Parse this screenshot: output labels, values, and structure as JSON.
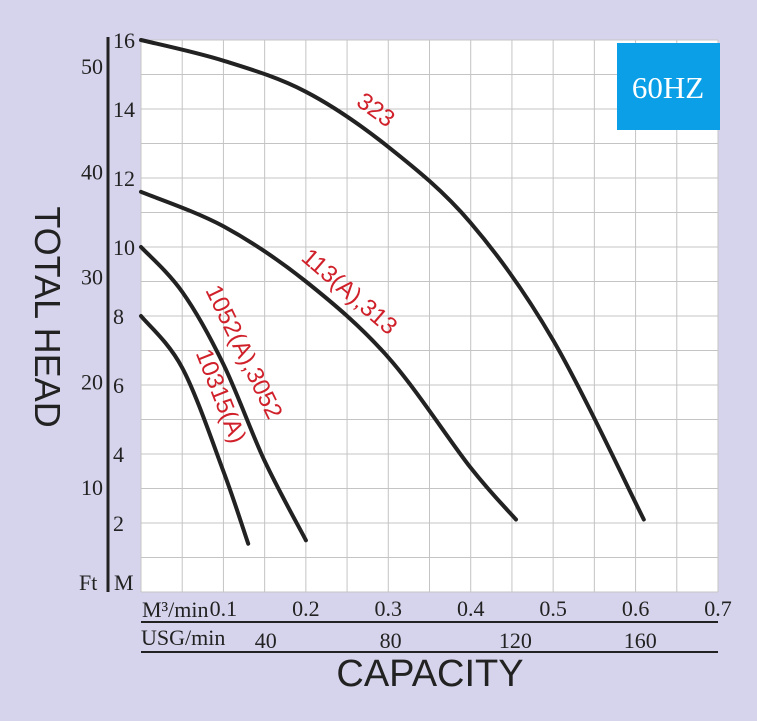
{
  "chart_data": {
    "type": "line",
    "badge": "60HZ",
    "xlabel": "CAPACITY",
    "ylabel": "TOTAL HEAD",
    "x_unit_primary": "M³/min",
    "x_unit_secondary": "USG/min",
    "y_unit_primary": "M",
    "y_unit_secondary": "Ft",
    "xlim": [
      0,
      0.7
    ],
    "ylim": [
      0,
      16
    ],
    "x_ticks": [
      "0.1",
      "0.2",
      "0.3",
      "0.4",
      "0.5",
      "0.6",
      "0.7"
    ],
    "x2_ticks": [
      "40",
      "80",
      "120",
      "160"
    ],
    "y_ticks": [
      "2",
      "4",
      "6",
      "8",
      "10",
      "12",
      "14",
      "16"
    ],
    "y2_ticks": [
      "10",
      "20",
      "30",
      "40",
      "50"
    ],
    "grid": true,
    "colors": {
      "background": "#d6d4ec",
      "plot": "#ffffff",
      "curve": "#222222",
      "label": "#d0202a",
      "badge": "#0a9fe6"
    },
    "series": [
      {
        "name": "323",
        "x": [
          0,
          0.1,
          0.2,
          0.3,
          0.4,
          0.5,
          0.61
        ],
        "y": [
          16,
          15.4,
          14.5,
          12.9,
          10.7,
          7.3,
          2.1
        ]
      },
      {
        "name": "113(A),313",
        "x": [
          0,
          0.1,
          0.2,
          0.3,
          0.4,
          0.455
        ],
        "y": [
          11.6,
          10.6,
          9.0,
          6.8,
          3.6,
          2.1
        ]
      },
      {
        "name": "1052(A),3052",
        "x": [
          0,
          0.05,
          0.1,
          0.15,
          0.2
        ],
        "y": [
          10.0,
          8.7,
          6.6,
          3.8,
          1.5
        ]
      },
      {
        "name": "10315(A)",
        "x": [
          0,
          0.05,
          0.1,
          0.13
        ],
        "y": [
          8.0,
          6.5,
          3.5,
          1.4
        ]
      }
    ]
  }
}
